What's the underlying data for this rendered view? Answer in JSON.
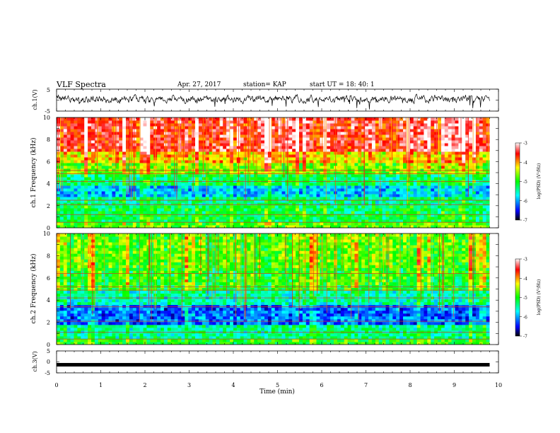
{
  "header": {
    "title": "VLF Spectra",
    "date": "Apr. 27, 2017",
    "station": "station= KAP",
    "start": "start  UT  =   18: 40: 1"
  },
  "chart_data": [
    {
      "type": "line",
      "panel": "ch1-waveform",
      "ylabel": "ch.1(V)",
      "xlim": [
        0,
        10
      ],
      "ylim": [
        -5,
        5
      ],
      "yticks": [
        "5",
        "-5"
      ],
      "mean_level": 0.5,
      "trace_span_minutes": 9.8,
      "color": "#000000"
    },
    {
      "type": "heatmap",
      "panel": "ch1-spectrogram",
      "ylabel": "ch.1 Frequency (kHz)",
      "xlim": [
        0,
        10
      ],
      "ylim": [
        0,
        10
      ],
      "yticks": [
        "0",
        "2",
        "4",
        "6",
        "8",
        "10"
      ],
      "colorbar": {
        "label": "log(PSD) (V²/Hz)",
        "ticks": [
          "-3",
          "-4",
          "-5",
          "-6",
          "-7"
        ],
        "range": [
          -7,
          -3
        ]
      },
      "bands_khz": [
        {
          "f0": 0,
          "f1": 0.6,
          "log_psd": -4.8
        },
        {
          "f0": 0.6,
          "f1": 2.0,
          "log_psd": -5.2
        },
        {
          "f0": 2.0,
          "f1": 2.8,
          "log_psd": -5.4
        },
        {
          "f0": 2.8,
          "f1": 3.9,
          "log_psd": -5.9
        },
        {
          "f0": 3.9,
          "f1": 5.0,
          "log_psd": -5.3
        },
        {
          "f0": 5.0,
          "f1": 5.8,
          "log_psd": -4.7
        },
        {
          "f0": 5.8,
          "f1": 7.0,
          "log_psd": -4.2
        },
        {
          "f0": 7.0,
          "f1": 10.0,
          "log_psd": -3.5
        }
      ],
      "lines_khz": [
        0.5,
        1.2,
        2.1,
        2.5,
        4.2,
        4.9,
        5.2
      ]
    },
    {
      "type": "heatmap",
      "panel": "ch2-spectrogram",
      "ylabel": "ch.2 Frequency (kHz)",
      "xlim": [
        0,
        10
      ],
      "ylim": [
        0,
        10
      ],
      "yticks": [
        "0",
        "2",
        "4",
        "6",
        "8",
        "10"
      ],
      "colorbar": {
        "label": "log(PSD) (V²/Hz)",
        "ticks": [
          "-3",
          "-4",
          "-5",
          "-6",
          "-7"
        ],
        "range": [
          -7,
          -3
        ]
      },
      "bands_khz": [
        {
          "f0": 0,
          "f1": 0.6,
          "log_psd": -5.0
        },
        {
          "f0": 0.6,
          "f1": 1.8,
          "log_psd": -5.4
        },
        {
          "f0": 1.8,
          "f1": 3.5,
          "log_psd": -6.2
        },
        {
          "f0": 3.5,
          "f1": 5.0,
          "log_psd": -5.5
        },
        {
          "f0": 5.0,
          "f1": 7.0,
          "log_psd": -5.0
        },
        {
          "f0": 7.0,
          "f1": 10.0,
          "log_psd": -4.8
        }
      ],
      "lines_khz": [
        0.5,
        1.1,
        2.1,
        3.4,
        4.2,
        4.9,
        5.2,
        6.4
      ]
    },
    {
      "type": "line",
      "panel": "ch3-waveform",
      "ylabel": "ch.3(V)",
      "xlabel": "Time (min)",
      "xlim": [
        0,
        10
      ],
      "ylim": [
        -5,
        5
      ],
      "yticks": [
        "5",
        "0",
        "-5"
      ],
      "xticks": [
        "0",
        "1",
        "2",
        "3",
        "4",
        "5",
        "6",
        "7",
        "8",
        "9",
        "10"
      ],
      "mean_level": -1.3,
      "trace_span_minutes": 9.8,
      "color": "#000000"
    }
  ]
}
